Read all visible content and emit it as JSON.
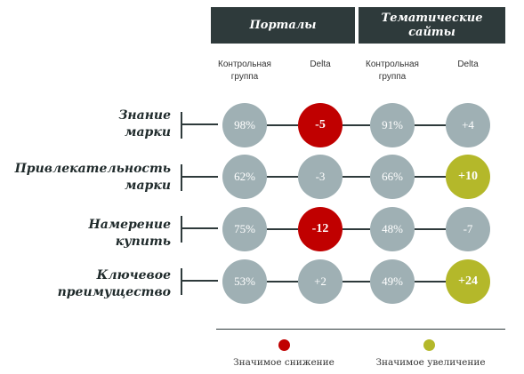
{
  "header": {
    "portals": "Порталы",
    "sites_line1": "Тематические",
    "sites_line2": "сайты"
  },
  "columns": {
    "control_line1": "Контрольная",
    "control_line2": "группа",
    "delta": "Delta"
  },
  "rows": [
    {
      "label_line1": "Знание",
      "label_line2": "марки",
      "portals_control": "98%",
      "portals_delta": "-5",
      "sites_control": "91%",
      "sites_delta": "+4"
    },
    {
      "label_line1": "Привлекательность",
      "label_line2": "марки",
      "portals_control": "62%",
      "portals_delta": "-3",
      "sites_control": "66%",
      "sites_delta": "+10"
    },
    {
      "label_line1": "Намерение",
      "label_line2": "купить",
      "portals_control": "75%",
      "portals_delta": "-12",
      "sites_control": "48%",
      "sites_delta": "-7"
    },
    {
      "label_line1": "Ключевое",
      "label_line2": "преимущество",
      "portals_control": "53%",
      "portals_delta": "+2",
      "sites_control": "49%",
      "sites_delta": "+24"
    }
  ],
  "legend": {
    "decrease": "Значимое снижение",
    "increase": "Значимое увеличение"
  },
  "colors": {
    "header_bg": "#2e3a3b",
    "neutral": "#9fb0b4",
    "decrease": "#c00000",
    "increase": "#b4b82a"
  }
}
